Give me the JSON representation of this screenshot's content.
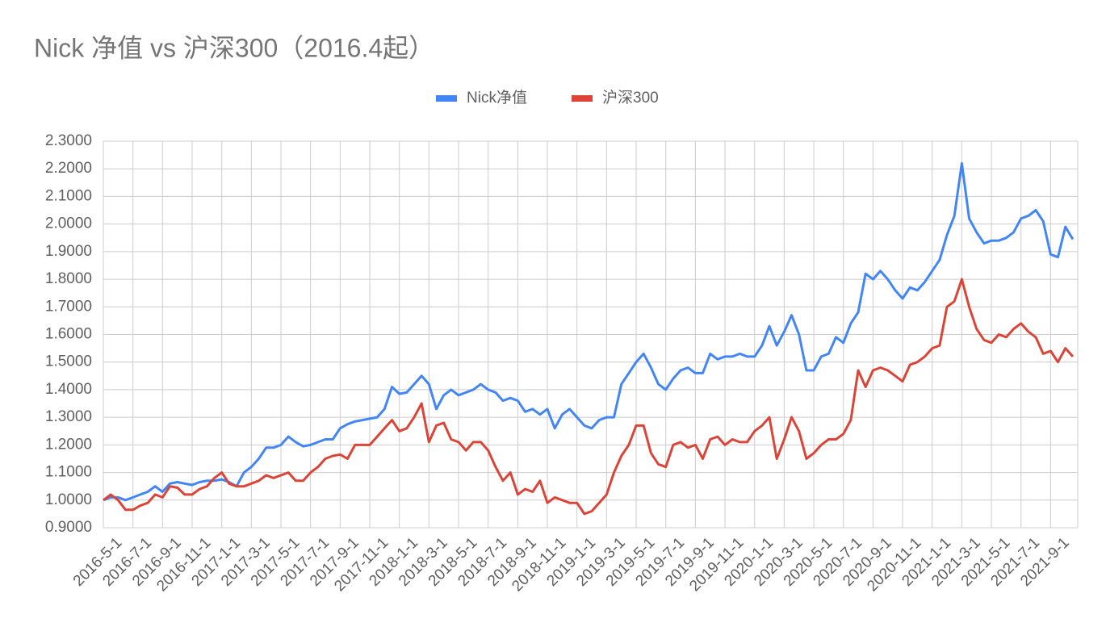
{
  "chart_data": {
    "type": "line",
    "title": "Nick 净值 vs 沪深300（2016.4起）",
    "categories": [
      null,
      null,
      "2016-5-1",
      null,
      null,
      null,
      "2016-7-1",
      null,
      null,
      null,
      "2016-9-1",
      null,
      null,
      null,
      "2016-11-1",
      null,
      null,
      null,
      "2017-1-1",
      null,
      null,
      null,
      "2017-3-1",
      null,
      null,
      null,
      "2017-5-1",
      null,
      null,
      null,
      "2017-7-1",
      null,
      null,
      null,
      "2017-9-1",
      null,
      null,
      null,
      "2017-11-1",
      null,
      null,
      null,
      "2018-1-1",
      null,
      null,
      null,
      "2018-3-1",
      null,
      null,
      null,
      "2018-5-1",
      null,
      null,
      null,
      "2018-7-1",
      null,
      null,
      null,
      "2018-9-1",
      null,
      null,
      null,
      "2018-11-1",
      null,
      null,
      null,
      "2019-1-1",
      null,
      null,
      null,
      "2019-3-1",
      null,
      null,
      null,
      "2019-5-1",
      null,
      null,
      null,
      "2019-7-1",
      null,
      null,
      null,
      "2019-9-1",
      null,
      null,
      null,
      "2019-11-1",
      null,
      null,
      null,
      "2020-1-1",
      null,
      null,
      null,
      "2020-3-1",
      null,
      null,
      null,
      "2020-5-1",
      null,
      null,
      null,
      "2020-7-1",
      null,
      null,
      null,
      "2020-9-1",
      null,
      null,
      null,
      "2020-11-1",
      null,
      null,
      null,
      "2021-1-1",
      null,
      null,
      null,
      "2021-3-1",
      null,
      null,
      null,
      "2021-5-1",
      null,
      null,
      null,
      "2021-7-1",
      null,
      null,
      null,
      "2021-9-1",
      null
    ],
    "series": [
      {
        "name": "Nick净值",
        "color": "#4285f4",
        "values": [
          1.0,
          1.01,
          1.01,
          1.0,
          1.01,
          1.02,
          1.03,
          1.05,
          1.03,
          1.06,
          1.065,
          1.06,
          1.055,
          1.065,
          1.07,
          1.07,
          1.075,
          1.065,
          1.05,
          1.1,
          1.12,
          1.15,
          1.19,
          1.19,
          1.2,
          1.23,
          1.21,
          1.195,
          1.2,
          1.21,
          1.22,
          1.22,
          1.26,
          1.275,
          1.285,
          1.29,
          1.295,
          1.3,
          1.33,
          1.41,
          1.385,
          1.39,
          1.42,
          1.45,
          1.42,
          1.33,
          1.38,
          1.4,
          1.38,
          1.39,
          1.4,
          1.42,
          1.4,
          1.39,
          1.36,
          1.37,
          1.36,
          1.32,
          1.33,
          1.31,
          1.33,
          1.26,
          1.31,
          1.33,
          1.3,
          1.27,
          1.26,
          1.29,
          1.3,
          1.3,
          1.42,
          1.46,
          1.5,
          1.53,
          1.48,
          1.42,
          1.4,
          1.44,
          1.47,
          1.48,
          1.46,
          1.46,
          1.53,
          1.51,
          1.52,
          1.52,
          1.53,
          1.52,
          1.52,
          1.56,
          1.63,
          1.56,
          1.61,
          1.67,
          1.6,
          1.47,
          1.47,
          1.52,
          1.53,
          1.59,
          1.57,
          1.64,
          1.68,
          1.82,
          1.8,
          1.83,
          1.8,
          1.76,
          1.73,
          1.77,
          1.76,
          1.79,
          1.83,
          1.87,
          1.96,
          2.03,
          2.22,
          2.02,
          1.97,
          1.93,
          1.94,
          1.94,
          1.95,
          1.97,
          2.02,
          2.03,
          2.05,
          2.01,
          1.89,
          1.88,
          1.99,
          1.945
        ]
      },
      {
        "name": "沪深300",
        "color": "#db4437",
        "values": [
          1.0,
          1.02,
          1.0,
          0.965,
          0.965,
          0.98,
          0.99,
          1.02,
          1.01,
          1.05,
          1.045,
          1.02,
          1.02,
          1.04,
          1.05,
          1.08,
          1.1,
          1.06,
          1.05,
          1.05,
          1.06,
          1.07,
          1.09,
          1.08,
          1.09,
          1.1,
          1.07,
          1.07,
          1.1,
          1.12,
          1.15,
          1.16,
          1.165,
          1.15,
          1.2,
          1.2,
          1.2,
          1.23,
          1.26,
          1.29,
          1.25,
          1.26,
          1.3,
          1.35,
          1.21,
          1.27,
          1.28,
          1.22,
          1.21,
          1.18,
          1.21,
          1.21,
          1.18,
          1.12,
          1.07,
          1.1,
          1.02,
          1.04,
          1.03,
          1.07,
          0.99,
          1.01,
          1.0,
          0.99,
          0.99,
          0.95,
          0.96,
          0.99,
          1.02,
          1.1,
          1.16,
          1.2,
          1.27,
          1.27,
          1.17,
          1.13,
          1.12,
          1.2,
          1.21,
          1.19,
          1.2,
          1.15,
          1.22,
          1.23,
          1.2,
          1.22,
          1.21,
          1.21,
          1.25,
          1.27,
          1.3,
          1.15,
          1.22,
          1.3,
          1.25,
          1.15,
          1.17,
          1.2,
          1.22,
          1.22,
          1.24,
          1.29,
          1.47,
          1.41,
          1.47,
          1.48,
          1.47,
          1.45,
          1.43,
          1.49,
          1.5,
          1.52,
          1.55,
          1.56,
          1.7,
          1.72,
          1.8,
          1.7,
          1.62,
          1.58,
          1.57,
          1.6,
          1.59,
          1.62,
          1.64,
          1.61,
          1.59,
          1.53,
          1.54,
          1.5,
          1.55,
          1.52
        ]
      }
    ],
    "ylim": [
      0.9,
      2.3
    ],
    "yticks": [
      {
        "value": 0.9,
        "label": "0.9000"
      },
      {
        "value": 1.0,
        "label": "1.0000"
      },
      {
        "value": 1.1,
        "label": "1.1000"
      },
      {
        "value": 1.2,
        "label": "1.2000"
      },
      {
        "value": 1.3,
        "label": "1.3000"
      },
      {
        "value": 1.4,
        "label": "1.4000"
      },
      {
        "value": 1.5,
        "label": "1.5000"
      },
      {
        "value": 1.6,
        "label": "1.6000"
      },
      {
        "value": 1.7,
        "label": "1.7000"
      },
      {
        "value": 1.8,
        "label": "1.8000"
      },
      {
        "value": 1.9,
        "label": "1.9000"
      },
      {
        "value": 2.0,
        "label": "2.0000"
      },
      {
        "value": 2.1,
        "label": "2.1000"
      },
      {
        "value": 2.2,
        "label": "2.2000"
      },
      {
        "value": 2.3,
        "label": "2.3000"
      }
    ],
    "grid": true,
    "legend": "top"
  }
}
